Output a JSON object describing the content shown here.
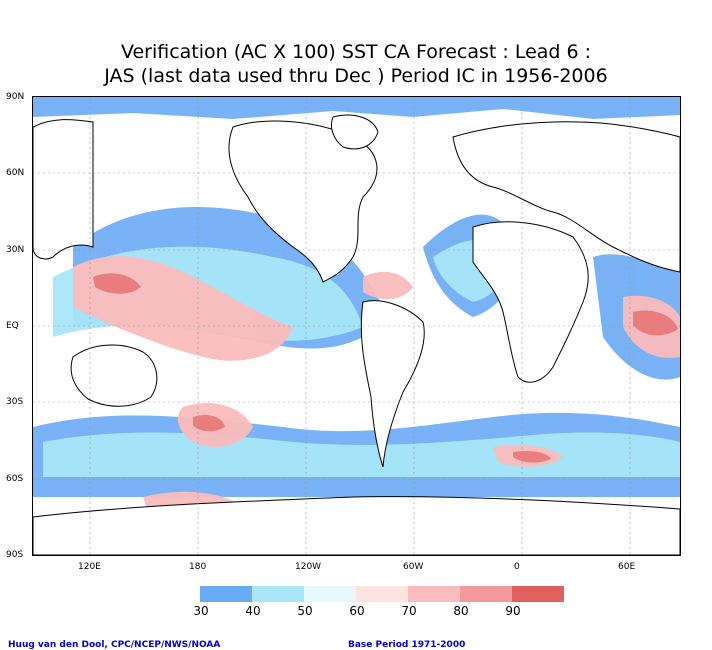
{
  "title_line1": "Verification (AC X 100) SST CA Forecast : Lead 6 :",
  "title_line2": "JAS (last data used thru Dec ) Period IC in 1956-2006",
  "lat_labels": [
    "90N",
    "60N",
    "30N",
    "EQ",
    "30S",
    "60S",
    "90S"
  ],
  "lon_labels": [
    "120E",
    "180",
    "120W",
    "60W",
    "0",
    "60E"
  ],
  "colorbar": {
    "labels": [
      "30",
      "40",
      "50",
      "60",
      "70",
      "80",
      "90"
    ],
    "colors": [
      "#6aaaf5",
      "#a8e6f8",
      "#e6f8fc",
      "#fde2e2",
      "#fabcbc",
      "#f29a9a",
      "#e87777",
      "#e06060"
    ]
  },
  "footer_left": "Huug van den Dool, CPC/NCEP/NWS/NOAA",
  "footer_right": "Base Period 1971-2000"
}
